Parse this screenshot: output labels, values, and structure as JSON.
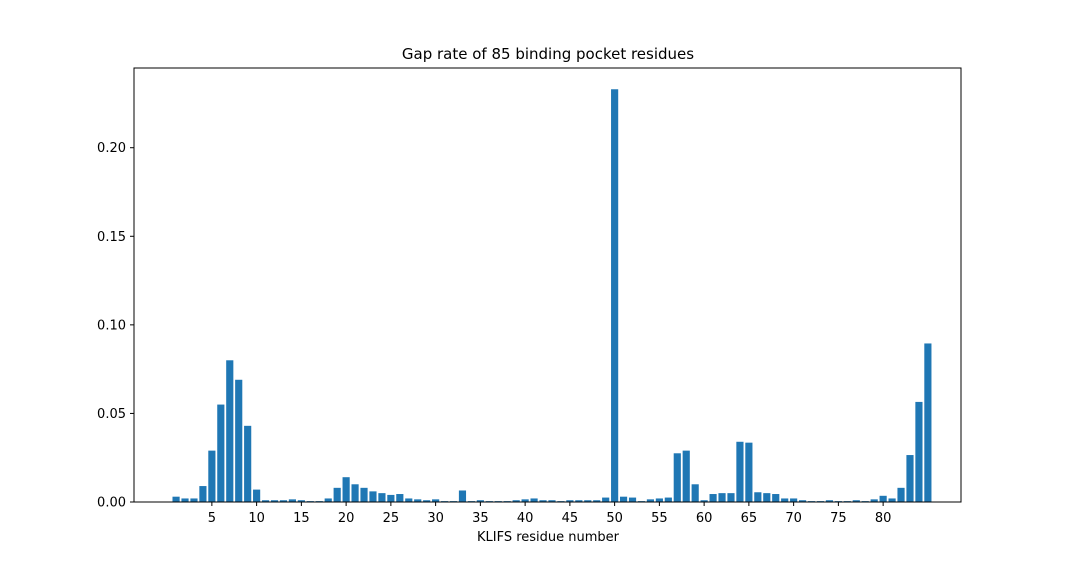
{
  "chart_data": {
    "type": "bar",
    "title": "Gap rate of 85 binding pocket residues",
    "xlabel": "KLIFS residue number",
    "ylabel": "",
    "x_ticks": [
      5,
      10,
      15,
      20,
      25,
      30,
      35,
      40,
      45,
      50,
      55,
      60,
      65,
      70,
      75,
      80
    ],
    "y_ticks": [
      0.0,
      0.05,
      0.1,
      0.15,
      0.2
    ],
    "y_tick_labels": [
      "0.00",
      "0.05",
      "0.10",
      "0.15",
      "0.20"
    ],
    "xlim": [
      -3.7,
      88.7
    ],
    "ylim": [
      0,
      0.245
    ],
    "bar_color": "#1f77b4",
    "categories": [
      1,
      2,
      3,
      4,
      5,
      6,
      7,
      8,
      9,
      10,
      11,
      12,
      13,
      14,
      15,
      16,
      17,
      18,
      19,
      20,
      21,
      22,
      23,
      24,
      25,
      26,
      27,
      28,
      29,
      30,
      31,
      32,
      33,
      34,
      35,
      36,
      37,
      38,
      39,
      40,
      41,
      42,
      43,
      44,
      45,
      46,
      47,
      48,
      49,
      50,
      51,
      52,
      53,
      54,
      55,
      56,
      57,
      58,
      59,
      60,
      61,
      62,
      63,
      64,
      65,
      66,
      67,
      68,
      69,
      70,
      71,
      72,
      73,
      74,
      75,
      76,
      77,
      78,
      79,
      80,
      81,
      82,
      83,
      84,
      85
    ],
    "values": [
      0.003,
      0.002,
      0.002,
      0.009,
      0.029,
      0.055,
      0.08,
      0.069,
      0.043,
      0.007,
      0.001,
      0.001,
      0.001,
      0.0015,
      0.001,
      0.0005,
      0.0005,
      0.002,
      0.008,
      0.014,
      0.01,
      0.008,
      0.006,
      0.005,
      0.004,
      0.0045,
      0.002,
      0.0015,
      0.001,
      0.0015,
      0.0005,
      0.0005,
      0.0065,
      0.0005,
      0.001,
      0.0005,
      0.0005,
      0.0005,
      0.001,
      0.0015,
      0.002,
      0.001,
      0.001,
      0.0005,
      0.001,
      0.001,
      0.001,
      0.001,
      0.0025,
      0.233,
      0.003,
      0.0025,
      0.0005,
      0.0015,
      0.002,
      0.0025,
      0.0275,
      0.029,
      0.01,
      0.001,
      0.0045,
      0.005,
      0.005,
      0.034,
      0.0335,
      0.0055,
      0.005,
      0.0045,
      0.002,
      0.002,
      0.001,
      0.0005,
      0.0005,
      0.001,
      0.0005,
      0.0005,
      0.001,
      0.0005,
      0.0015,
      0.0035,
      0.002,
      0.008,
      0.0265,
      0.0565,
      0.0895
    ]
  }
}
